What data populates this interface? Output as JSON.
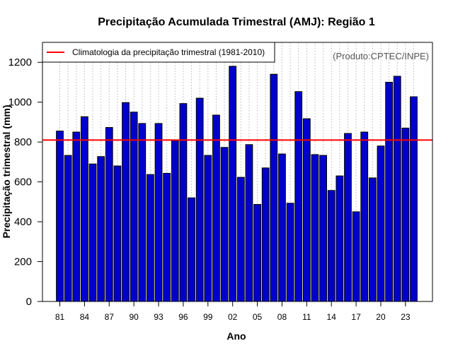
{
  "chart_data": {
    "type": "bar",
    "title": "Precipitação Acumulada Trimestral (AMJ): Região 1",
    "xlabel": "Ano",
    "ylabel": "Precipitação trimestral (mm)",
    "ylim": [
      0,
      1300
    ],
    "yticks": [
      0,
      200,
      400,
      600,
      800,
      1000,
      1200
    ],
    "ytick_labels": [
      "0",
      "200",
      "400",
      "600",
      "800",
      "1000",
      "1200"
    ],
    "grid": "vertical dotted",
    "bar_color": "#0000cc",
    "categories": [
      "81",
      "82",
      "83",
      "84",
      "85",
      "86",
      "87",
      "88",
      "89",
      "90",
      "91",
      "92",
      "93",
      "94",
      "95",
      "96",
      "97",
      "98",
      "99",
      "00",
      "01",
      "02",
      "03",
      "04",
      "05",
      "06",
      "07",
      "08",
      "09",
      "10",
      "11",
      "12",
      "13",
      "14",
      "15",
      "16",
      "17",
      "18",
      "19",
      "20",
      "21",
      "22",
      "23",
      "24"
    ],
    "tick_labels": [
      {
        "index": 0,
        "label": "81"
      },
      {
        "index": 3,
        "label": "84"
      },
      {
        "index": 6,
        "label": "87"
      },
      {
        "index": 9,
        "label": "90"
      },
      {
        "index": 12,
        "label": "93"
      },
      {
        "index": 15,
        "label": "96"
      },
      {
        "index": 18,
        "label": "99"
      },
      {
        "index": 21,
        "label": "02"
      },
      {
        "index": 24,
        "label": "05"
      },
      {
        "index": 27,
        "label": "08"
      },
      {
        "index": 30,
        "label": "11"
      },
      {
        "index": 33,
        "label": "14"
      },
      {
        "index": 36,
        "label": "17"
      },
      {
        "index": 39,
        "label": "20"
      },
      {
        "index": 42,
        "label": "23"
      }
    ],
    "values": [
      855,
      733,
      850,
      927,
      690,
      727,
      873,
      680,
      998,
      950,
      893,
      637,
      893,
      643,
      808,
      993,
      520,
      1020,
      733,
      935,
      773,
      1180,
      623,
      787,
      487,
      670,
      1140,
      740,
      493,
      1053,
      917,
      737,
      733,
      557,
      630,
      843,
      450,
      850,
      620,
      780,
      1100,
      1130,
      870,
      1027
    ],
    "reference_line": {
      "value": 810,
      "color": "#ff0000",
      "label": "Climatologia da precipitação trimestral (1981-2010)"
    },
    "legend_position": "top-left"
  },
  "credit": "(Produto:CPTEC/INPE)"
}
